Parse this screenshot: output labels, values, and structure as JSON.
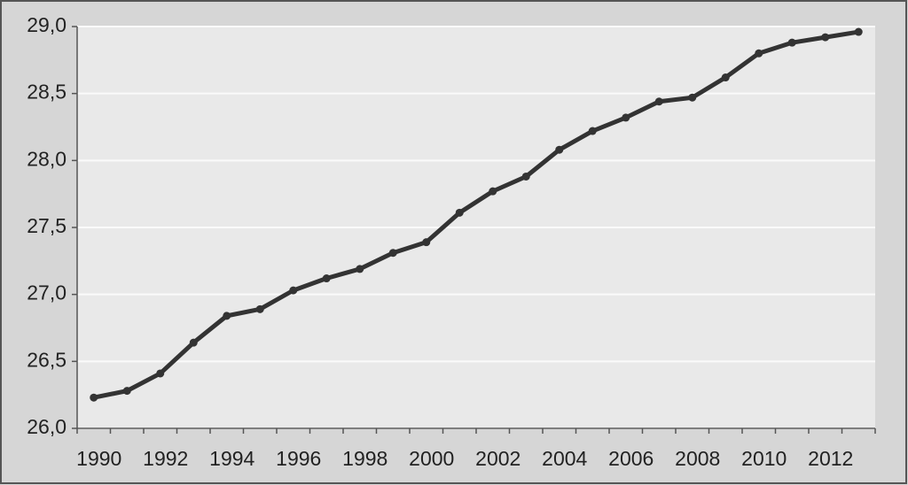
{
  "chart_data": {
    "type": "line",
    "categories": [
      "1990",
      null,
      "1992",
      null,
      "1994",
      null,
      "1996",
      null,
      "1998",
      null,
      "2000",
      null,
      "2002",
      null,
      "2004",
      null,
      "2006",
      null,
      "2008",
      null,
      "2010",
      null,
      "2012",
      null
    ],
    "values": [
      26.23,
      26.28,
      26.41,
      26.64,
      26.84,
      26.89,
      27.03,
      27.12,
      27.19,
      27.31,
      27.39,
      27.61,
      27.77,
      27.88,
      28.08,
      28.22,
      28.32,
      28.44,
      28.47,
      28.62,
      28.8,
      28.88,
      28.92,
      28.96
    ],
    "color": "#333333",
    "ylim": [
      26,
      29
    ],
    "yticks": [
      {
        "value": 26,
        "label": "26,0"
      },
      {
        "value": 26.5,
        "label": "26,5"
      },
      {
        "value": 27,
        "label": "27,0"
      },
      {
        "value": 27.5,
        "label": "27,5"
      },
      {
        "value": 28,
        "label": "28,0"
      },
      {
        "value": 28.5,
        "label": "28,5"
      },
      {
        "value": 29,
        "label": "29,0"
      }
    ],
    "grid": true
  }
}
